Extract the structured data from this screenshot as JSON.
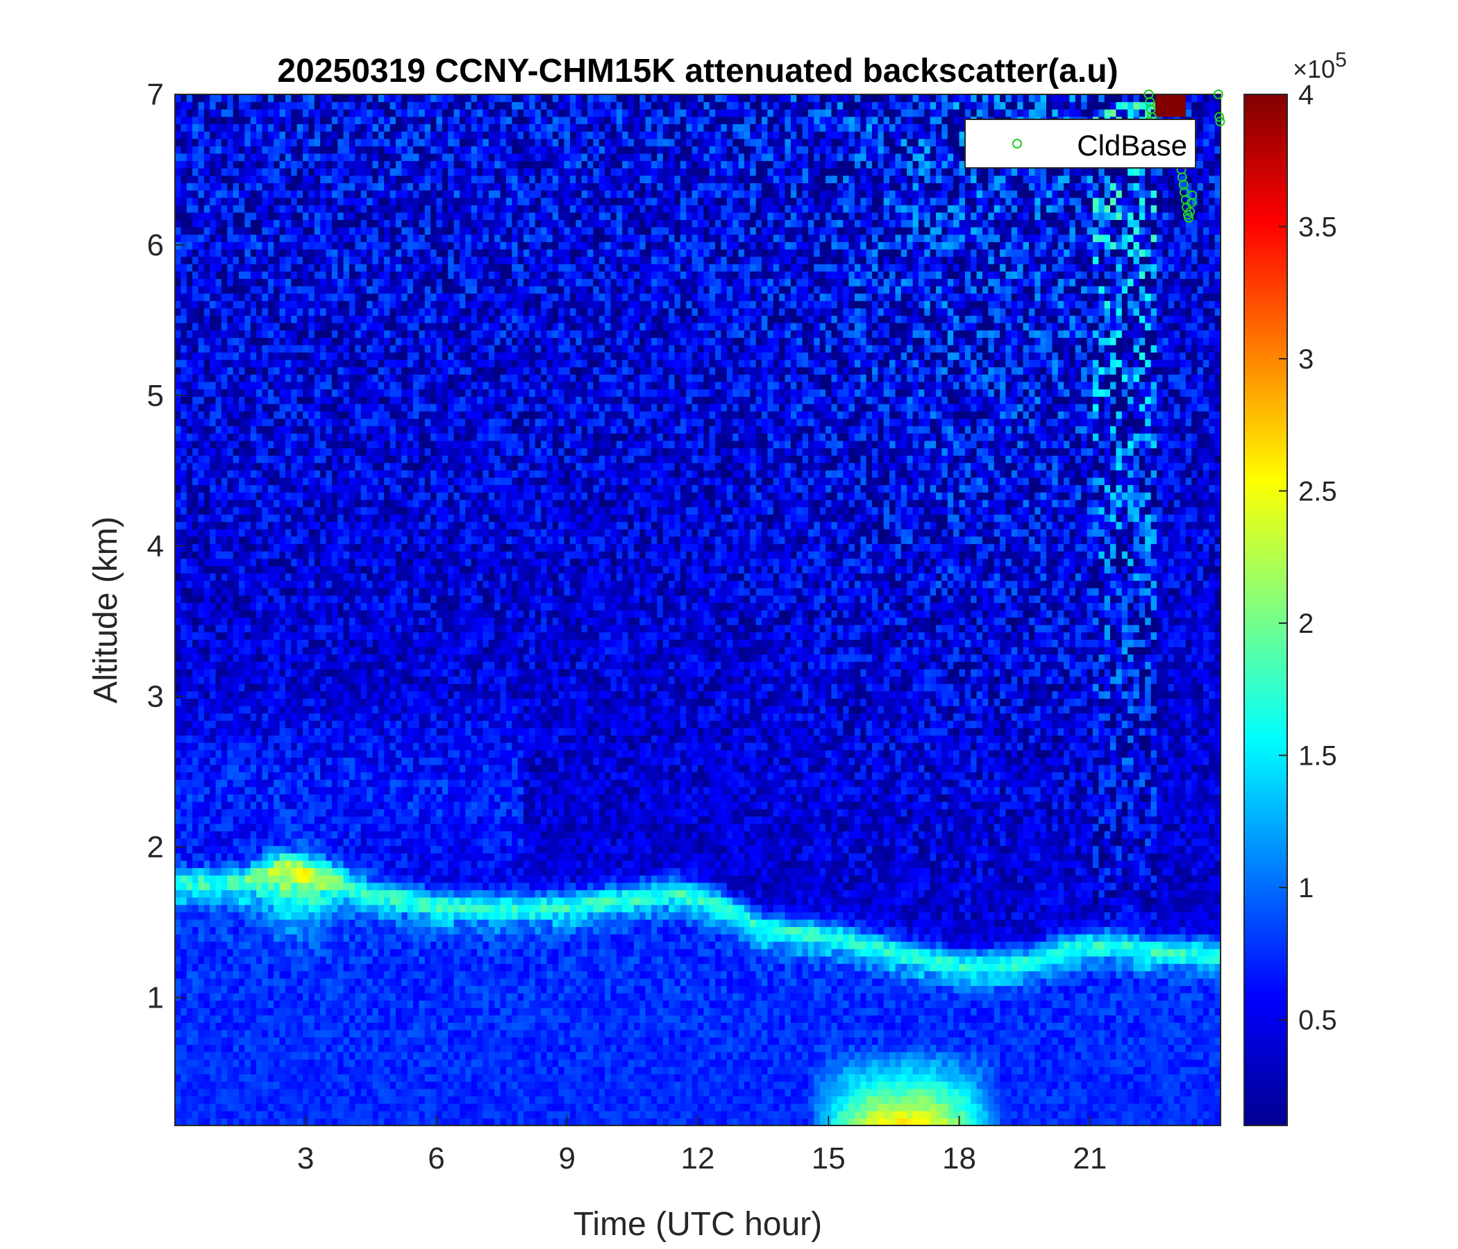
{
  "chart_data": {
    "type": "heatmap",
    "title": "20250319 CCNY-CHM15K attenuated backscatter(a.u)",
    "xlabel": "Time (UTC hour)",
    "ylabel": "Altitude (km)",
    "xlim": [
      0,
      24
    ],
    "ylim": [
      0.15,
      7
    ],
    "xticks": [
      3,
      6,
      9,
      12,
      15,
      18,
      21
    ],
    "xtick_labels": [
      "3",
      "6",
      "9",
      "12",
      "15",
      "18",
      "21"
    ],
    "yticks": [
      1,
      2,
      3,
      4,
      5,
      6,
      7
    ],
    "ytick_labels": [
      "1",
      "2",
      "3",
      "4",
      "5",
      "6",
      "7"
    ],
    "colorbar": {
      "colormap": "jet",
      "range": [
        10000,
        400000
      ],
      "exponent_label": "×10",
      "exponent_power": "5",
      "ticks": [
        0.5,
        1,
        1.5,
        2,
        2.5,
        3,
        3.5,
        4
      ],
      "tick_labels": [
        "0.5",
        "1",
        "1.5",
        "2",
        "2.5",
        "3",
        "3.5",
        "4"
      ]
    },
    "layer_top_km": [
      {
        "t": 1.5,
        "z": 1.75
      },
      {
        "t": 2.5,
        "z": 1.85
      },
      {
        "t": 3.5,
        "z": 1.78
      },
      {
        "t": 4.5,
        "z": 1.68
      },
      {
        "t": 6.0,
        "z": 1.6
      },
      {
        "t": 7.5,
        "z": 1.58
      },
      {
        "t": 9.0,
        "z": 1.6
      },
      {
        "t": 10.5,
        "z": 1.65
      },
      {
        "t": 11.5,
        "z": 1.7
      },
      {
        "t": 12.5,
        "z": 1.6
      },
      {
        "t": 13.5,
        "z": 1.45
      },
      {
        "t": 15.0,
        "z": 1.4
      },
      {
        "t": 16.5,
        "z": 1.3
      },
      {
        "t": 18.0,
        "z": 1.2
      },
      {
        "t": 19.5,
        "z": 1.22
      },
      {
        "t": 20.5,
        "z": 1.32
      },
      {
        "t": 21.5,
        "z": 1.35
      },
      {
        "t": 22.5,
        "z": 1.3
      },
      {
        "t": 24.0,
        "z": 1.28
      }
    ],
    "peak_backscatter_location": {
      "t": 2.8,
      "z": 1.7
    },
    "surface_enhancement_hours": [
      14.5,
      19.0
    ],
    "high_noise_region_hours": [
      12.5,
      22.5
    ],
    "series": [
      {
        "name": "CldBase",
        "marker": "circle",
        "color": "#22cc22",
        "points": [
          {
            "x": 22.35,
            "y": 7.0
          },
          {
            "x": 22.38,
            "y": 6.95
          },
          {
            "x": 22.4,
            "y": 6.9
          },
          {
            "x": 22.42,
            "y": 6.85
          },
          {
            "x": 22.36,
            "y": 6.82
          },
          {
            "x": 23.1,
            "y": 6.5
          },
          {
            "x": 23.12,
            "y": 6.45
          },
          {
            "x": 23.15,
            "y": 6.4
          },
          {
            "x": 23.17,
            "y": 6.35
          },
          {
            "x": 23.2,
            "y": 6.3
          },
          {
            "x": 23.22,
            "y": 6.25
          },
          {
            "x": 23.25,
            "y": 6.2
          },
          {
            "x": 23.27,
            "y": 6.18
          },
          {
            "x": 23.3,
            "y": 6.22
          },
          {
            "x": 23.33,
            "y": 6.28
          },
          {
            "x": 23.35,
            "y": 6.33
          },
          {
            "x": 23.95,
            "y": 7.0
          },
          {
            "x": 23.97,
            "y": 6.85
          },
          {
            "x": 23.99,
            "y": 6.82
          }
        ]
      }
    ],
    "legend_position": "top-right"
  }
}
